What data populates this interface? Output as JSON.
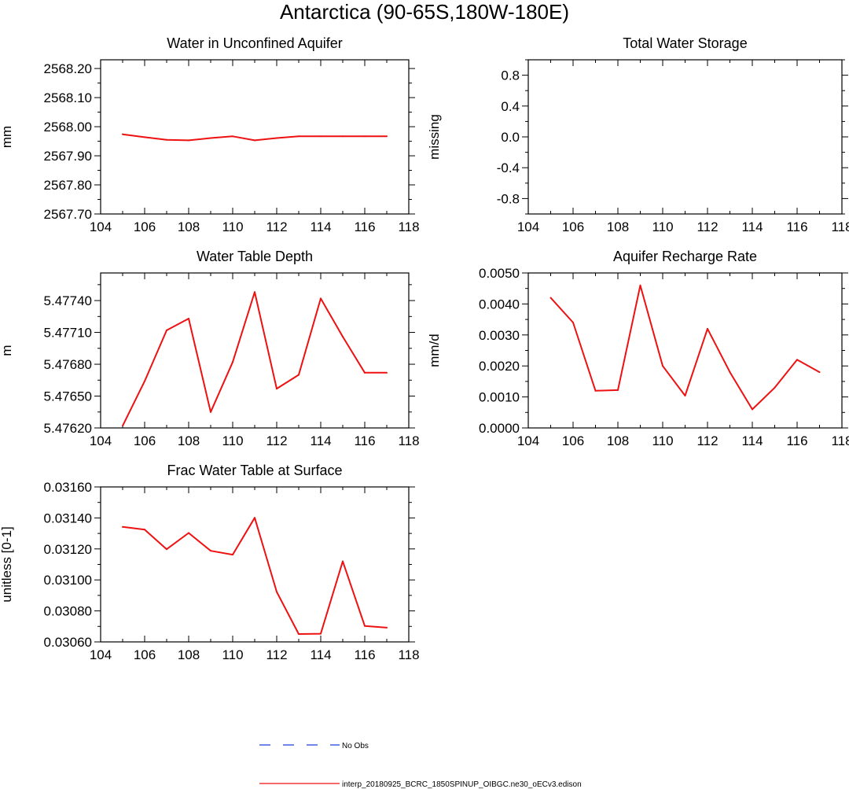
{
  "figure": {
    "title": "Antarctica (90-65S,180W-180E)",
    "legend": {
      "entries": [
        {
          "label": "No Obs",
          "color": "#1f3fdc",
          "style": "dashed"
        },
        {
          "label": "interp_20180925_BCRC_1850SPINUP_OIBGC.ne30_oECv3.edison",
          "color": "#ee1111",
          "style": "solid"
        }
      ]
    },
    "series_color": "#ee1111"
  },
  "chart_data": [
    {
      "id": "unconfined",
      "type": "line",
      "title": "Water in Unconfined Aquifer",
      "xlabel": "",
      "ylabel": "mm",
      "xlim": [
        104,
        118
      ],
      "ylim": [
        2567.7,
        2568.23
      ],
      "xticks": [
        104,
        106,
        108,
        110,
        112,
        114,
        116,
        118
      ],
      "xtick_labels": [
        "104",
        "106",
        "108",
        "110",
        "112",
        "114",
        "116",
        "118"
      ],
      "yticks": [
        2567.7,
        2567.8,
        2567.9,
        2568.0,
        2568.1,
        2568.2
      ],
      "ytick_labels": [
        "2567.70",
        "2567.80",
        "2567.90",
        "2568.00",
        "2568.10",
        "2568.20"
      ],
      "x": [
        105,
        106,
        107,
        108,
        109,
        110,
        111,
        112,
        113,
        114,
        115,
        116,
        117
      ],
      "y": [
        2567.974,
        2567.964,
        2567.955,
        2567.953,
        2567.961,
        2567.967,
        2567.953,
        2567.961,
        2567.967,
        2567.967,
        2567.967,
        2567.967,
        2567.967
      ]
    },
    {
      "id": "tws",
      "type": "line",
      "title": "Total Water Storage",
      "xlabel": "",
      "ylabel": "missing",
      "xlim": [
        104,
        118
      ],
      "ylim": [
        -1,
        1
      ],
      "xticks": [
        104,
        106,
        108,
        110,
        112,
        114,
        116,
        118
      ],
      "xtick_labels": [
        "104",
        "106",
        "108",
        "110",
        "112",
        "114",
        "116",
        "118"
      ],
      "yticks": [
        -0.8,
        -0.4,
        0.0,
        0.4,
        0.8
      ],
      "ytick_labels": [
        "-0.8",
        "-0.4",
        "0.0",
        "0.4",
        "0.8"
      ],
      "x": [],
      "y": []
    },
    {
      "id": "wtd",
      "type": "line",
      "title": "Water Table Depth",
      "xlabel": "",
      "ylabel": "m",
      "xlim": [
        104,
        118
      ],
      "ylim": [
        5.4762,
        5.47766
      ],
      "xticks": [
        104,
        106,
        108,
        110,
        112,
        114,
        116,
        118
      ],
      "xtick_labels": [
        "104",
        "106",
        "108",
        "110",
        "112",
        "114",
        "116",
        "118"
      ],
      "yticks": [
        5.4762,
        5.4765,
        5.4768,
        5.4771,
        5.4774
      ],
      "ytick_labels": [
        "5.47620",
        "5.47650",
        "5.47680",
        "5.47710",
        "5.47740"
      ],
      "x": [
        105,
        106,
        107,
        108,
        109,
        110,
        111,
        112,
        113,
        114,
        115,
        116,
        117
      ],
      "y": [
        5.47622,
        5.47664,
        5.47712,
        5.47723,
        5.47635,
        5.47682,
        5.47748,
        5.47657,
        5.4767,
        5.47742,
        5.47706,
        5.47672,
        5.47672
      ]
    },
    {
      "id": "recharge",
      "type": "line",
      "title": "Aquifer Recharge Rate",
      "xlabel": "",
      "ylabel": "mm/d",
      "xlim": [
        104,
        118
      ],
      "ylim": [
        0,
        0.005
      ],
      "xticks": [
        104,
        106,
        108,
        110,
        112,
        114,
        116,
        118
      ],
      "xtick_labels": [
        "104",
        "106",
        "108",
        "110",
        "112",
        "114",
        "116",
        "118"
      ],
      "yticks": [
        0.0,
        0.001,
        0.002,
        0.003,
        0.004,
        0.005
      ],
      "ytick_labels": [
        "0.0000",
        "0.0010",
        "0.0020",
        "0.0030",
        "0.0040",
        "0.0050"
      ],
      "x": [
        105,
        106,
        107,
        108,
        109,
        110,
        111,
        112,
        113,
        114,
        115,
        116,
        117
      ],
      "y": [
        0.0042,
        0.0034,
        0.0012,
        0.00122,
        0.0046,
        0.002,
        0.00104,
        0.0032,
        0.0018,
        0.0006,
        0.0013,
        0.0022,
        0.0018
      ]
    },
    {
      "id": "fsat",
      "type": "line",
      "title": "Frac Water Table at Surface",
      "xlabel": "",
      "ylabel": "unitless [0-1]",
      "xlim": [
        104,
        118
      ],
      "ylim": [
        0.0306,
        0.0316
      ],
      "xticks": [
        104,
        106,
        108,
        110,
        112,
        114,
        116,
        118
      ],
      "xtick_labels": [
        "104",
        "106",
        "108",
        "110",
        "112",
        "114",
        "116",
        "118"
      ],
      "yticks": [
        0.0306,
        0.0308,
        0.031,
        0.0312,
        0.0314,
        0.0316
      ],
      "ytick_labels": [
        "0.03060",
        "0.03080",
        "0.03100",
        "0.03120",
        "0.03140",
        "0.03160"
      ],
      "x": [
        105,
        106,
        107,
        108,
        109,
        110,
        111,
        112,
        113,
        114,
        115,
        116,
        117
      ],
      "y": [
        0.031342,
        0.031325,
        0.031198,
        0.031303,
        0.031188,
        0.031163,
        0.031401,
        0.030923,
        0.030651,
        0.030653,
        0.03112,
        0.030703,
        0.030692
      ]
    }
  ]
}
